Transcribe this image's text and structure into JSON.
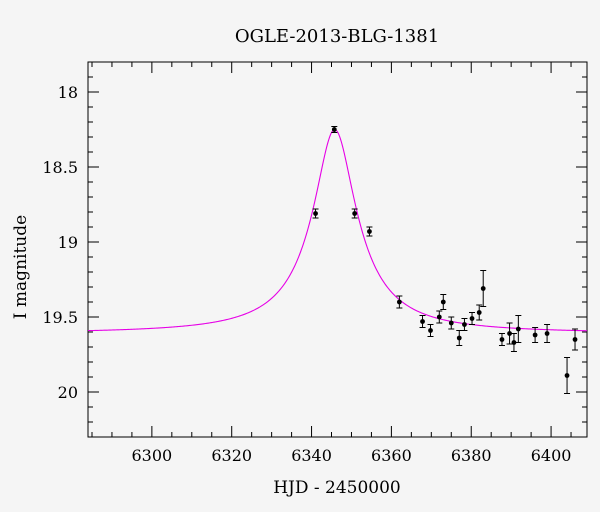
{
  "chart_data": {
    "type": "scatter",
    "title": "OGLE-2013-BLG-1381",
    "xlabel": "HJD - 2450000",
    "ylabel": "I magnitude",
    "xlim": [
      6284,
      6409
    ],
    "ylim": [
      20.3,
      17.8
    ],
    "y_inverted": true,
    "x_ticks": [
      6300,
      6320,
      6340,
      6360,
      6380,
      6400
    ],
    "y_ticks": [
      18,
      18.5,
      19,
      19.5,
      20
    ],
    "y_tick_labels": [
      "18",
      "18.5",
      "19",
      "19.5",
      "20"
    ],
    "grid": false,
    "colors": {
      "model": "#e600e6",
      "points": "#000000",
      "background": "#f5f5f5"
    },
    "model_curve": {
      "name": "",
      "baseline": 19.61,
      "peak_time": 6345.8,
      "peak_mag": 18.25,
      "width_days": 4.6
    },
    "points": [
      {
        "x": 6341.0,
        "y": 18.81,
        "err": 0.03
      },
      {
        "x": 6345.7,
        "y": 18.25,
        "err": 0.02
      },
      {
        "x": 6350.8,
        "y": 18.81,
        "err": 0.03
      },
      {
        "x": 6354.5,
        "y": 18.93,
        "err": 0.03
      },
      {
        "x": 6362.0,
        "y": 19.4,
        "err": 0.04
      },
      {
        "x": 6367.8,
        "y": 19.53,
        "err": 0.04
      },
      {
        "x": 6369.8,
        "y": 19.59,
        "err": 0.04
      },
      {
        "x": 6372.0,
        "y": 19.5,
        "err": 0.04
      },
      {
        "x": 6373.0,
        "y": 19.4,
        "err": 0.05
      },
      {
        "x": 6375.0,
        "y": 19.54,
        "err": 0.04
      },
      {
        "x": 6377.0,
        "y": 19.64,
        "err": 0.05
      },
      {
        "x": 6378.3,
        "y": 19.55,
        "err": 0.04
      },
      {
        "x": 6380.2,
        "y": 19.51,
        "err": 0.04
      },
      {
        "x": 6382.0,
        "y": 19.47,
        "err": 0.05
      },
      {
        "x": 6383.0,
        "y": 19.31,
        "err": 0.12
      },
      {
        "x": 6387.7,
        "y": 19.65,
        "err": 0.04
      },
      {
        "x": 6389.6,
        "y": 19.61,
        "err": 0.07
      },
      {
        "x": 6390.7,
        "y": 19.67,
        "err": 0.06
      },
      {
        "x": 6391.8,
        "y": 19.58,
        "err": 0.09
      },
      {
        "x": 6396.0,
        "y": 19.62,
        "err": 0.05
      },
      {
        "x": 6399.0,
        "y": 19.61,
        "err": 0.06
      },
      {
        "x": 6404.0,
        "y": 19.89,
        "err": 0.12
      },
      {
        "x": 6406.0,
        "y": 19.65,
        "err": 0.07
      }
    ]
  }
}
